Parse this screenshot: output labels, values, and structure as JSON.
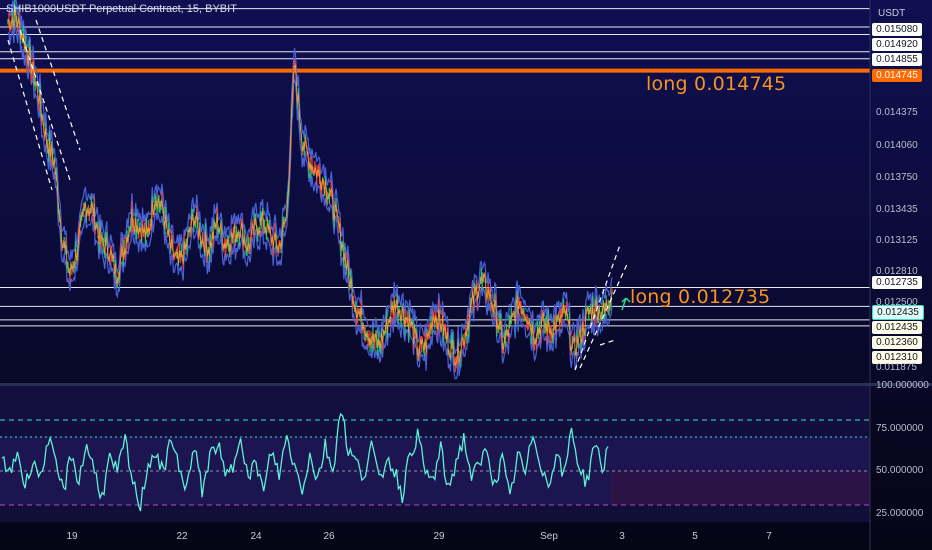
{
  "chart_data": [
    {
      "type": "candlestick-line",
      "title": "SHIB1000USDT Perpetual Contract, 15, BYBIT",
      "currency": "USDT",
      "ylim": [
        0.01185,
        0.0154
      ],
      "y_ticks_visible": [
        "0.015080",
        "0.014920",
        "0.014855",
        "0.014375",
        "0.014060",
        "0.013750",
        "0.013435",
        "0.013125",
        "0.012810",
        "0.012500",
        "0.012435",
        "0.012360",
        "0.012310",
        "0.011875"
      ],
      "price_tags": [
        {
          "label": "0.015080",
          "style": "white"
        },
        {
          "label": "0.014920",
          "style": "white"
        },
        {
          "label": "0.014855",
          "style": "white"
        },
        {
          "label": "0.014745",
          "style": "orange"
        },
        {
          "label": "0.012735",
          "style": "white"
        },
        {
          "label": "0.012435",
          "style": "teal"
        },
        {
          "label": "0.012435",
          "style": "cream"
        },
        {
          "label": "0.012360",
          "style": "cream"
        },
        {
          "label": "0.012310",
          "style": "cream"
        }
      ],
      "horizontal_levels": [
        0.01532,
        0.01515,
        0.01508,
        0.01492,
        0.014855,
        0.014745,
        0.012735,
        0.01256,
        0.012435,
        0.01238
      ],
      "highlight_level": 0.014745,
      "annotations": [
        {
          "text": "long 0.014745",
          "at": 0.014745
        },
        {
          "text": "long 0.012735",
          "at": 0.012735
        }
      ],
      "x_labels": [
        "19",
        "22",
        "24",
        "26",
        "29",
        "Sep",
        "3",
        "5",
        "7"
      ],
      "series": [
        {
          "name": "",
          "path": [
            [
              0,
              0.0152
            ],
            [
              1,
              0.01525
            ],
            [
              2,
              0.01505
            ],
            [
              3,
              0.0148
            ],
            [
              4,
              0.0145
            ],
            [
              5,
              0.0141
            ],
            [
              6,
              0.0139
            ],
            [
              7,
              0.0132
            ],
            [
              8,
              0.01285
            ],
            [
              9,
              0.0131
            ],
            [
              10,
              0.0135
            ],
            [
              11,
              0.01345
            ],
            [
              12,
              0.01315
            ],
            [
              13,
              0.0131
            ],
            [
              14,
              0.01285
            ],
            [
              15,
              0.0131
            ],
            [
              16,
              0.0134
            ],
            [
              17,
              0.0133
            ],
            [
              18,
              0.0132
            ],
            [
              19,
              0.0136
            ],
            [
              20,
              0.01345
            ],
            [
              21,
              0.0131
            ],
            [
              22,
              0.01295
            ],
            [
              23,
              0.0131
            ],
            [
              24,
              0.0134
            ],
            [
              25,
              0.0132
            ],
            [
              26,
              0.0131
            ],
            [
              27,
              0.01335
            ],
            [
              28,
              0.01315
            ],
            [
              29,
              0.0132
            ],
            [
              30,
              0.0133
            ],
            [
              31,
              0.0131
            ],
            [
              32,
              0.0133
            ],
            [
              33,
              0.01335
            ],
            [
              34,
              0.0132
            ],
            [
              35,
              0.0131
            ],
            [
              36,
              0.0134
            ],
            [
              37,
              0.0148
            ],
            [
              38,
              0.0141
            ],
            [
              39,
              0.0139
            ],
            [
              40,
              0.0138
            ],
            [
              41,
              0.0137
            ],
            [
              42,
              0.0135
            ],
            [
              43,
              0.0132
            ],
            [
              44,
              0.01285
            ],
            [
              45,
              0.01255
            ],
            [
              46,
              0.0124
            ],
            [
              47,
              0.01225
            ],
            [
              48,
              0.0122
            ],
            [
              49,
              0.0124
            ],
            [
              50,
              0.0126
            ],
            [
              51,
              0.0125
            ],
            [
              52,
              0.0124
            ],
            [
              53,
              0.01215
            ],
            [
              54,
              0.0122
            ],
            [
              55,
              0.0125
            ],
            [
              56,
              0.0124
            ],
            [
              57,
              0.0122
            ],
            [
              58,
              0.0121
            ],
            [
              59,
              0.0123
            ],
            [
              60,
              0.0126
            ],
            [
              61,
              0.0128
            ],
            [
              62,
              0.0127
            ],
            [
              63,
              0.0125
            ],
            [
              64,
              0.0122
            ],
            [
              65,
              0.0124
            ],
            [
              66,
              0.0126
            ],
            [
              67,
              0.0125
            ],
            [
              68,
              0.0123
            ],
            [
              69,
              0.0124
            ],
            [
              70,
              0.01235
            ],
            [
              71,
              0.0124
            ],
            [
              72,
              0.0125
            ],
            [
              73,
              0.01215
            ],
            [
              74,
              0.0123
            ],
            [
              75,
              0.0125
            ],
            [
              76,
              0.01255
            ],
            [
              77,
              0.0125
            ],
            [
              78,
              0.0127
            ]
          ],
          "x_range": [
            0,
            78
          ]
        }
      ]
    },
    {
      "type": "line",
      "title": "",
      "ylim": [
        20,
        100
      ],
      "y_ticks": [
        "100.000000",
        "75.000000",
        "50.000000",
        "25.000000"
      ],
      "levels": [
        80,
        70,
        50,
        30
      ],
      "series": [
        {
          "name": "",
          "values": [
            55,
            48,
            62,
            40,
            58,
            45,
            70,
            52,
            38,
            60,
            44,
            66,
            50,
            35,
            57,
            49,
            68,
            42,
            30,
            55,
            61,
            47,
            72,
            50,
            41,
            63,
            39,
            58,
            67,
            46,
            52,
            74,
            44,
            56,
            37,
            62,
            48,
            70,
            53,
            40,
            59,
            45,
            65,
            50,
            88,
            62,
            55,
            47,
            66,
            43,
            58,
            51,
            36,
            60,
            71,
            49,
            44,
            63,
            38,
            56,
            69,
            47,
            52,
            64,
            41,
            57,
            33,
            60,
            48,
            72,
            55,
            40,
            62,
            46,
            75,
            52,
            43,
            68,
            50,
            70
          ]
        }
      ]
    }
  ]
}
